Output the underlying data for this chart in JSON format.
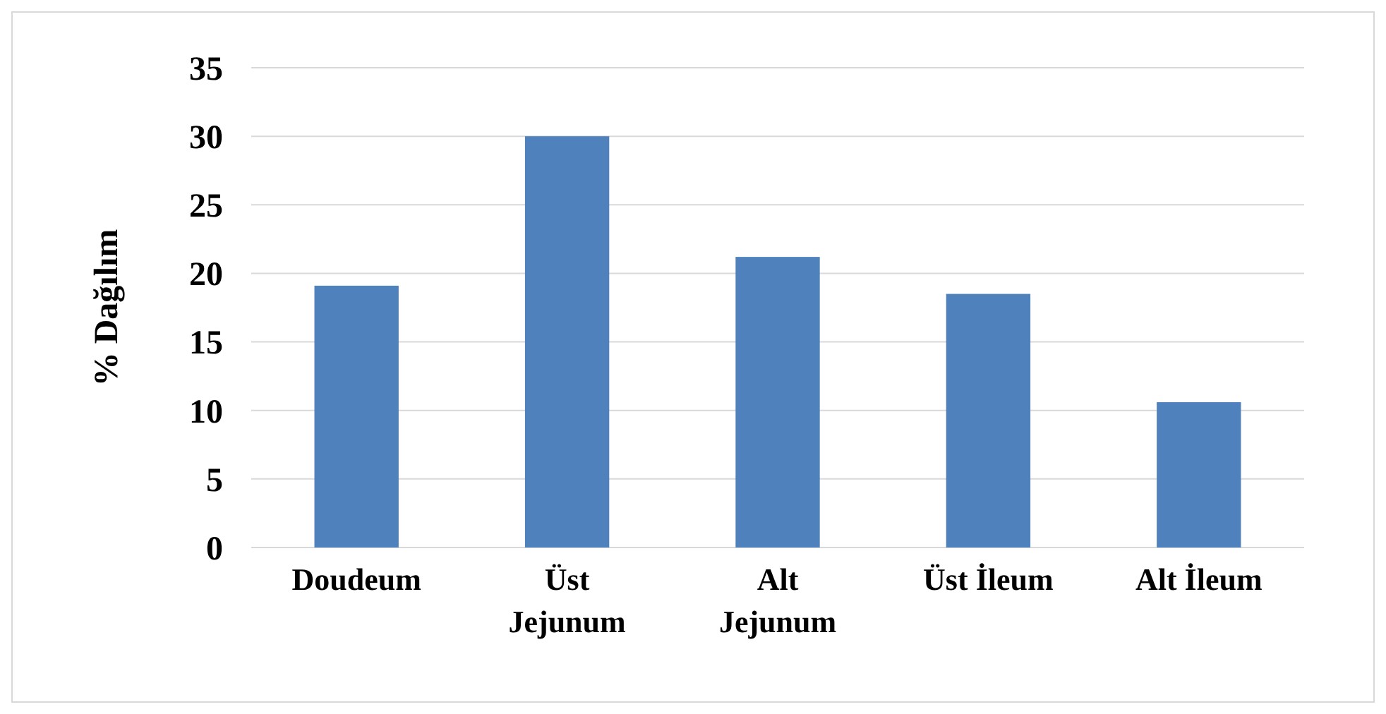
{
  "chart_data": {
    "type": "bar",
    "ylabel": "% Dağılım",
    "categories": [
      "Doudeum",
      "Üst Jejunum",
      "Alt Jejunum",
      "Üst İleum",
      "Alt İleum"
    ],
    "values": [
      19.1,
      30,
      21.2,
      18.5,
      10.6
    ],
    "color": "#4f81bd",
    "ylim": [
      0,
      35
    ],
    "yticks": [
      0,
      5,
      10,
      15,
      20,
      25,
      30,
      35
    ],
    "grid": "y"
  }
}
